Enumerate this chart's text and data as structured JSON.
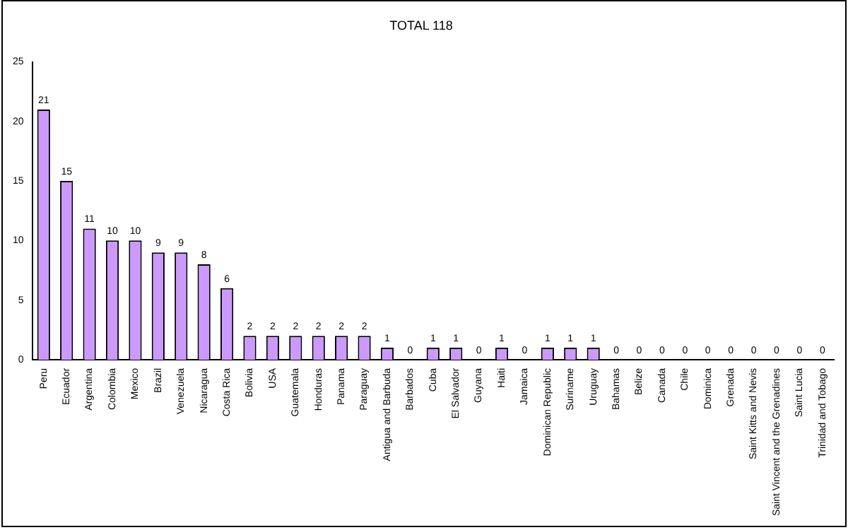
{
  "chart_data": {
    "type": "bar",
    "title": "TOTAL 118",
    "categories": [
      "Peru",
      "Ecuador",
      "Argentina",
      "Colombia",
      "Mexico",
      "Brazil",
      "Venezuela",
      "Nicaragua",
      "Costa Rica",
      "Bolivia",
      "USA",
      "Guatemala",
      "Honduras",
      "Panama",
      "Paraguay",
      "Antigua and Barbuda",
      "Barbados",
      "Cuba",
      "El Salvador",
      "Guyana",
      "Haiti",
      "Jamaica",
      "Dominican Republic",
      "Suriname",
      "Uruguay",
      "Bahamas",
      "Belize",
      "Canada",
      "Chile",
      "Dominica",
      "Grenada",
      "Saint Kitts and Nevis",
      "Saint Vincent and the Grenadines",
      "Saint Lucia",
      "Trinidad and Tobago"
    ],
    "values": [
      21,
      15,
      11,
      10,
      10,
      9,
      9,
      8,
      6,
      2,
      2,
      2,
      2,
      2,
      2,
      1,
      0,
      1,
      1,
      0,
      1,
      0,
      1,
      1,
      1,
      0,
      0,
      0,
      0,
      0,
      0,
      0,
      0,
      0,
      0
    ],
    "color": "#cc99ff",
    "ylim": [
      0,
      25
    ],
    "yticks": [
      0,
      5,
      10,
      15,
      20,
      25
    ],
    "grid": false,
    "legend": false,
    "data_labels": true
  }
}
